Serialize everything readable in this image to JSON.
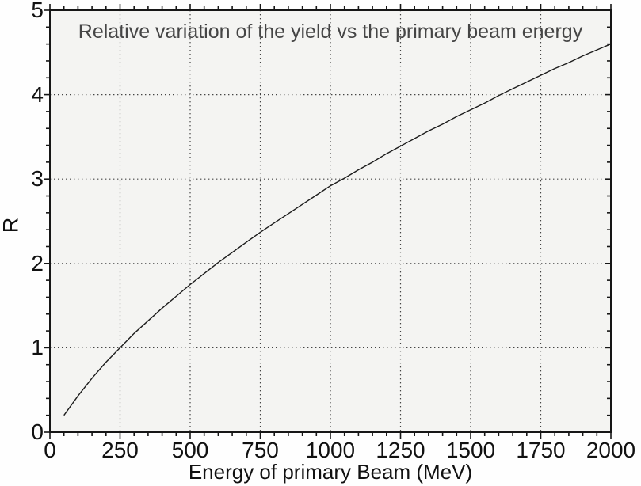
{
  "figure": {
    "kind": "static-line-plot"
  },
  "chart_data": {
    "type": "line",
    "title": "Relative variation of the yield vs the primary beam energy",
    "xlabel": "Energy of primary Beam (MeV)",
    "ylabel": "R",
    "xlim": [
      0,
      2000
    ],
    "ylim": [
      0,
      5
    ],
    "x_major_ticks": [
      0,
      250,
      500,
      750,
      1000,
      1250,
      1500,
      1750,
      2000
    ],
    "y_major_ticks": [
      0,
      1,
      2,
      3,
      4,
      5
    ],
    "x_minor_step": 50,
    "y_minor_step": 0.2,
    "grid": "dotted",
    "legend_position": "none",
    "series": [
      {
        "name": "R",
        "x": [
          50,
          100,
          150,
          200,
          250,
          300,
          350,
          400,
          450,
          500,
          550,
          600,
          650,
          700,
          750,
          800,
          850,
          900,
          950,
          1000,
          1050,
          1100,
          1150,
          1200,
          1250,
          1300,
          1350,
          1400,
          1450,
          1500,
          1550,
          1600,
          1650,
          1700,
          1750,
          1800,
          1850,
          1900,
          1950,
          2000
        ],
        "y": [
          0.2,
          0.43,
          0.64,
          0.83,
          1.0,
          1.17,
          1.32,
          1.47,
          1.61,
          1.75,
          1.88,
          2.01,
          2.13,
          2.25,
          2.37,
          2.48,
          2.59,
          2.7,
          2.81,
          2.92,
          3.01,
          3.11,
          3.2,
          3.3,
          3.39,
          3.48,
          3.57,
          3.65,
          3.74,
          3.82,
          3.9,
          3.99,
          4.07,
          4.15,
          4.23,
          4.31,
          4.38,
          4.46,
          4.53,
          4.6
        ]
      }
    ],
    "colors": {
      "curve": "#1c1c1c",
      "frame": "#161616",
      "grid_dots": "#444444",
      "plot_background": "#f4f4f2",
      "outer_background": "#fefefe",
      "title_text": "#454545",
      "tick_text": "#111111"
    }
  }
}
